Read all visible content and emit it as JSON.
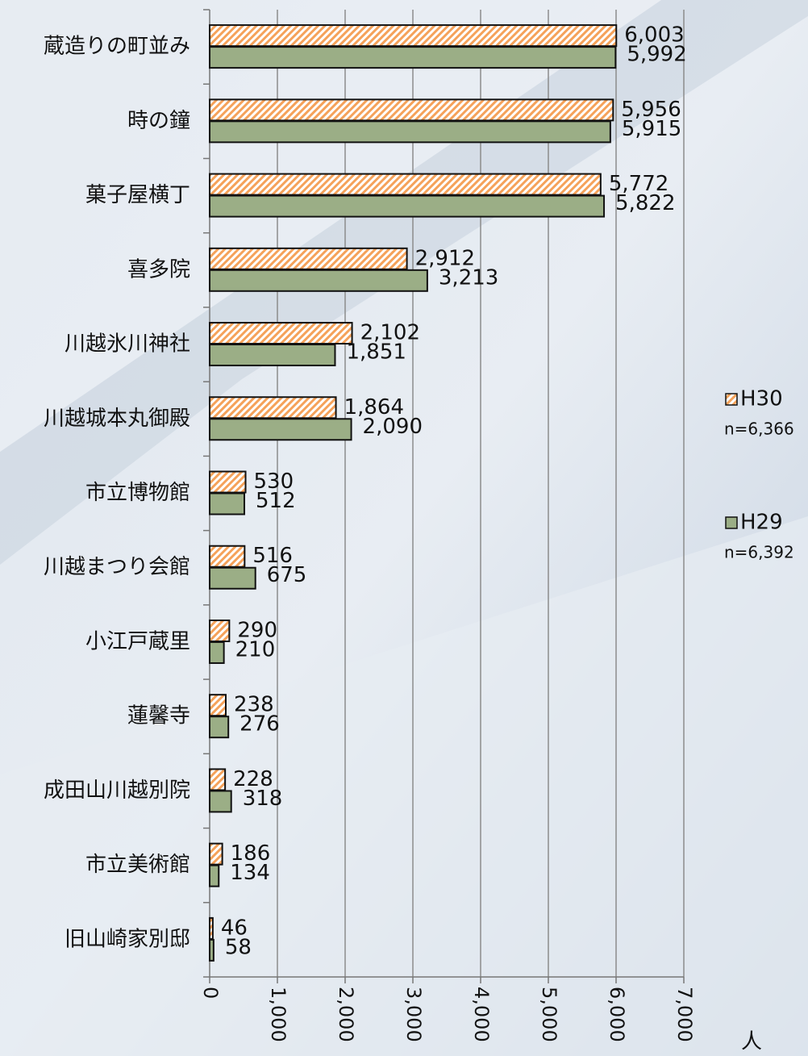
{
  "chart_data": {
    "type": "bar",
    "orientation": "horizontal",
    "unit_label": "人",
    "categories": [
      "蔵造りの町並み",
      "時の鐘",
      "菓子屋横丁",
      "喜多院",
      "川越氷川神社",
      "川越城本丸御殿",
      "市立博物館",
      "川越まつり会館",
      "小江戸蔵里",
      "蓮馨寺",
      "成田山川越別院",
      "市立美術館",
      "旧山崎家別邸"
    ],
    "series": [
      {
        "name": "H30",
        "note_label": "n=6,366",
        "color": "#f5a25a",
        "pattern": "hatch",
        "values": [
          6003,
          5956,
          5772,
          2912,
          2102,
          1864,
          530,
          516,
          290,
          238,
          228,
          186,
          46
        ],
        "value_labels": [
          "6,003",
          "5,956",
          "5,772",
          "2,912",
          "2,102",
          "1,864",
          "530",
          "516",
          "290",
          "238",
          "228",
          "186",
          "46"
        ]
      },
      {
        "name": "H29",
        "note_label": "n=6,392",
        "color": "#9bae86",
        "pattern": "solid",
        "values": [
          5992,
          5915,
          5822,
          3213,
          1851,
          2090,
          512,
          675,
          210,
          276,
          318,
          134,
          58
        ],
        "value_labels": [
          "5,992",
          "5,915",
          "5,822",
          "3,213",
          "1,851",
          "2,090",
          "512",
          "675",
          "210",
          "276",
          "318",
          "134",
          "58"
        ]
      }
    ],
    "xlim": [
      0,
      7000
    ],
    "xticks": [
      0,
      {
        "value": 1000,
        "label": "1,000"
      },
      {
        "value": 2000,
        "label": "2,000"
      },
      {
        "value": 3000,
        "label": "3,000"
      },
      {
        "value": 4000,
        "label": "4,000"
      },
      {
        "value": 5000,
        "label": "5,000"
      },
      {
        "value": 6000,
        "label": "6,000"
      },
      {
        "value": 7000,
        "label": "7,000"
      }
    ],
    "grid": true,
    "legend": "right"
  }
}
